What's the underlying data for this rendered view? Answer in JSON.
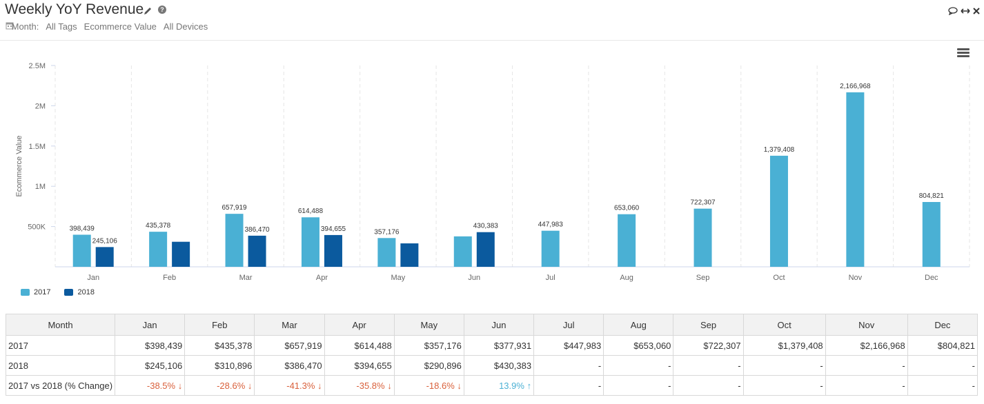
{
  "header": {
    "title": "Weekly YoY Revenue",
    "filters": {
      "period": "Month:",
      "tags": "All Tags",
      "metric": "Ecommerce Value",
      "devices": "All Devices"
    }
  },
  "colors": {
    "series2017": "#4ab0d4",
    "series2018": "#0b5a9e",
    "negative": "#d9603b",
    "positive": "#4ab0d4"
  },
  "chart_data": {
    "type": "bar",
    "title": "Weekly YoY Revenue",
    "xlabel": "",
    "ylabel": "Ecommerce Value",
    "ylim": [
      0,
      2500000
    ],
    "yticks": [
      500000,
      1000000,
      1500000,
      2000000,
      2500000
    ],
    "ytick_labels": [
      "500K",
      "1M",
      "1.5M",
      "2M",
      "2.5M"
    ],
    "categories": [
      "Jan",
      "Feb",
      "Mar",
      "Apr",
      "May",
      "Jun",
      "Jul",
      "Aug",
      "Sep",
      "Oct",
      "Nov",
      "Dec"
    ],
    "series": [
      {
        "name": "2017",
        "values": [
          398439,
          435378,
          657919,
          614488,
          357176,
          377931,
          447983,
          653060,
          722307,
          1379408,
          2166968,
          804821
        ],
        "labels": [
          "398,439",
          "435,378",
          "657,919",
          "614,488",
          "357,176",
          "",
          "447,983",
          "653,060",
          "722,307",
          "1,379,408",
          "2,166,968",
          "804,821"
        ]
      },
      {
        "name": "2018",
        "values": [
          245106,
          310896,
          386470,
          394655,
          290896,
          430383,
          null,
          null,
          null,
          null,
          null,
          null
        ],
        "labels": [
          "245,106",
          "",
          "386,470",
          "394,655",
          "",
          "430,383",
          "",
          "",
          "",
          "",
          "",
          ""
        ]
      }
    ],
    "legend": "bottom-left",
    "grid": "vertical-dashed"
  },
  "table": {
    "headers": [
      "Month",
      "Jan",
      "Feb",
      "Mar",
      "Apr",
      "May",
      "Jun",
      "Jul",
      "Aug",
      "Sep",
      "Oct",
      "Nov",
      "Dec"
    ],
    "rows": [
      {
        "label": "2017",
        "cells": [
          "$398,439",
          "$435,378",
          "$657,919",
          "$614,488",
          "$357,176",
          "$377,931",
          "$447,983",
          "$653,060",
          "$722,307",
          "$1,379,408",
          "$2,166,968",
          "$804,821"
        ]
      },
      {
        "label": "2018",
        "cells": [
          "$245,106",
          "$310,896",
          "$386,470",
          "$394,655",
          "$290,896",
          "$430,383",
          "-",
          "-",
          "-",
          "-",
          "-",
          "-"
        ]
      }
    ],
    "change": {
      "label": "2017 vs 2018 (% Change)",
      "cells": [
        {
          "text": "-38.5%",
          "dir": "down"
        },
        {
          "text": "-28.6%",
          "dir": "down"
        },
        {
          "text": "-41.3%",
          "dir": "down"
        },
        {
          "text": "-35.8%",
          "dir": "down"
        },
        {
          "text": "-18.6%",
          "dir": "down"
        },
        {
          "text": "13.9%",
          "dir": "up"
        },
        {
          "text": "-",
          "dir": ""
        },
        {
          "text": "-",
          "dir": ""
        },
        {
          "text": "-",
          "dir": ""
        },
        {
          "text": "-",
          "dir": ""
        },
        {
          "text": "-",
          "dir": ""
        },
        {
          "text": "-",
          "dir": ""
        }
      ]
    }
  }
}
